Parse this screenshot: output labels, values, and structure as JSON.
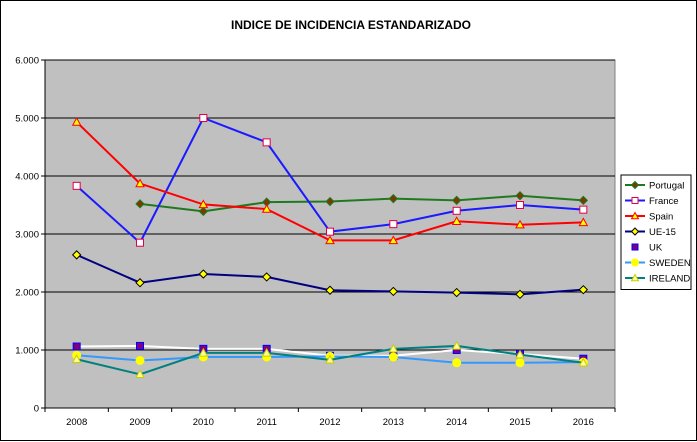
{
  "chart_data": {
    "type": "line",
    "title": "INDICE DE INCIDENCIA ESTANDARIZADO",
    "xlabel": "",
    "ylabel": "",
    "categories": [
      "2008",
      "2009",
      "2010",
      "2011",
      "2012",
      "2013",
      "2014",
      "2015",
      "2016"
    ],
    "ylim": [
      0,
      6000
    ],
    "yticks": [
      0,
      1000,
      2000,
      3000,
      4000,
      5000,
      6000
    ],
    "ytick_labels": [
      "0",
      "1.000",
      "2.000",
      "3.000",
      "4.000",
      "5.000",
      "6.000"
    ],
    "grid": true,
    "legend_position": "right",
    "plot_background": "#c0c0c0",
    "series": [
      {
        "name": "Portugal",
        "color": "#1f7a1f",
        "marker": "diamond",
        "marker_fill": "#7a3a00",
        "marker_stroke": "#1f7a1f",
        "values": [
          null,
          3520,
          3390,
          3550,
          3560,
          3610,
          3580,
          3660,
          3580
        ]
      },
      {
        "name": "France",
        "color": "#1a1aff",
        "marker": "square",
        "marker_fill": "#ffffff",
        "marker_stroke": "#e0004a",
        "values": [
          3830,
          2850,
          5000,
          4580,
          3040,
          3170,
          3400,
          3500,
          3420
        ]
      },
      {
        "name": "Spain",
        "color": "#ff0000",
        "marker": "triangle",
        "marker_fill": "#ffff00",
        "marker_stroke": "#ff0000",
        "values": [
          4930,
          3870,
          3510,
          3430,
          2890,
          2890,
          3220,
          3160,
          3200
        ]
      },
      {
        "name": "UE-15",
        "color": "#000080",
        "marker": "diamond",
        "marker_fill": "#ffff00",
        "marker_stroke": "#000000",
        "values": [
          2640,
          2160,
          2310,
          2260,
          2030,
          2010,
          1990,
          1960,
          2040
        ]
      },
      {
        "name": "UK",
        "color": "#ffffff",
        "marker": "square",
        "marker_fill": "#800080",
        "marker_stroke": "#0000ff",
        "values": [
          1060,
          1070,
          1020,
          1020,
          900,
          900,
          1000,
          930,
          850
        ]
      },
      {
        "name": "SWEDEN",
        "color": "#3399ff",
        "marker": "circle",
        "marker_fill": "#ffff00",
        "marker_stroke": "#ffff00",
        "values": [
          910,
          820,
          880,
          880,
          890,
          880,
          780,
          780,
          790
        ]
      },
      {
        "name": "IRELAND",
        "color": "#008080",
        "marker": "triangle",
        "marker_fill": "#ffff99",
        "marker_stroke": "#cccc00",
        "values": [
          840,
          580,
          950,
          950,
          830,
          1020,
          1070,
          920,
          780
        ]
      }
    ]
  }
}
